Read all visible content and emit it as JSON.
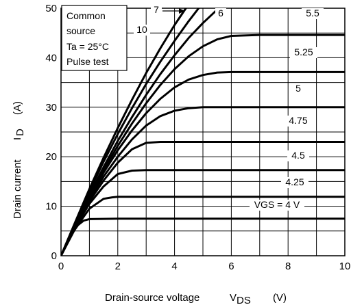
{
  "chart_data": {
    "type": "line",
    "xlabel": "Drain-source voltage",
    "xlabel_symbol": "V",
    "xlabel_subscript": "DS",
    "xlabel_unit": "(V)",
    "ylabel": "Drain current",
    "ylabel_symbol": "I",
    "ylabel_subscript": "D",
    "ylabel_unit": "(A)",
    "xlim": [
      0,
      10
    ],
    "ylim": [
      0,
      50
    ],
    "xticks": [
      0,
      2,
      4,
      6,
      8,
      10
    ],
    "yticks": [
      0,
      10,
      20,
      30,
      40,
      50
    ],
    "grid": true,
    "conditions": [
      "Common",
      "source",
      "Ta = 25°C",
      "Pulse test"
    ],
    "series": [
      {
        "name": "VGS = 4 V",
        "x": [
          0,
          0.2,
          0.4,
          0.6,
          0.8,
          1.0,
          2.0,
          4.0,
          6.0,
          8.0,
          10.0
        ],
        "y": [
          0,
          2.5,
          4.6,
          6.2,
          7.1,
          7.4,
          7.5,
          7.5,
          7.5,
          7.5,
          7.5
        ]
      },
      {
        "name": "4.25",
        "x": [
          0,
          0.5,
          1.0,
          1.5,
          1.8,
          2.0,
          4.0,
          6.0,
          8.0,
          10.0
        ],
        "y": [
          0,
          5.5,
          9.5,
          11.5,
          11.8,
          11.9,
          11.9,
          11.9,
          11.9,
          11.9
        ]
      },
      {
        "name": "4.5",
        "x": [
          0,
          0.5,
          1.0,
          1.5,
          2.0,
          2.5,
          3.0,
          4.0,
          6.0,
          8.0,
          10.0
        ],
        "y": [
          0,
          5.8,
          10.5,
          14.0,
          16.5,
          17.2,
          17.3,
          17.3,
          17.3,
          17.3,
          17.3
        ]
      },
      {
        "name": "4.75",
        "x": [
          0,
          0.5,
          1.0,
          1.5,
          2.0,
          2.5,
          3.0,
          3.5,
          4.0,
          6.0,
          8.0,
          10.0
        ],
        "y": [
          0,
          6.0,
          11.0,
          15.2,
          18.8,
          21.5,
          22.8,
          23.0,
          23.0,
          23.0,
          23.0,
          23.0
        ]
      },
      {
        "name": "5",
        "x": [
          0,
          0.5,
          1.0,
          1.5,
          2.0,
          2.5,
          3.0,
          3.5,
          4.0,
          4.5,
          5.0,
          6.0,
          8.0,
          10.0
        ],
        "y": [
          0,
          6.1,
          11.5,
          16.0,
          20.0,
          23.5,
          26.3,
          28.2,
          29.3,
          29.8,
          30.0,
          30.0,
          30.0,
          30.0
        ]
      },
      {
        "name": "5.25",
        "x": [
          0,
          0.5,
          1.0,
          1.5,
          2.0,
          2.5,
          3.0,
          3.5,
          4.0,
          4.5,
          5.0,
          5.5,
          6.0,
          7.0,
          8.0,
          10.0
        ],
        "y": [
          0,
          6.2,
          11.8,
          16.8,
          21.3,
          25.3,
          28.8,
          31.7,
          34.0,
          35.6,
          36.5,
          37.0,
          37.1,
          37.1,
          37.1,
          37.1
        ]
      },
      {
        "name": "5.5",
        "x": [
          0,
          0.5,
          1.0,
          1.5,
          2.0,
          2.5,
          3.0,
          3.5,
          4.0,
          4.5,
          5.0,
          5.5,
          6.0,
          7.0,
          8.0,
          10.0
        ],
        "y": [
          0,
          6.3,
          12.0,
          17.3,
          22.2,
          26.7,
          30.8,
          34.5,
          37.7,
          40.3,
          42.3,
          43.7,
          44.4,
          44.6,
          44.6,
          44.6
        ]
      },
      {
        "name": "6",
        "x": [
          0,
          0.5,
          1.0,
          1.5,
          2.0,
          2.5,
          3.0,
          3.5,
          4.0,
          4.5,
          5.0,
          5.5
        ],
        "y": [
          0,
          6.4,
          12.3,
          17.9,
          23.2,
          28.0,
          32.5,
          36.7,
          40.5,
          44.0,
          47.0,
          49.7
        ]
      },
      {
        "name": "10",
        "x": [
          0,
          0.5,
          1.0,
          1.5,
          2.0,
          2.5,
          3.0,
          3.5,
          4.0,
          4.5,
          4.85
        ],
        "y": [
          0,
          6.6,
          13.0,
          19.0,
          24.6,
          29.8,
          34.7,
          39.2,
          43.4,
          47.4,
          50.0
        ]
      },
      {
        "name": "7",
        "x": [
          0,
          0.5,
          1.0,
          1.5,
          2.0,
          2.5,
          3.0,
          3.5,
          4.0,
          4.4
        ],
        "y": [
          0,
          6.8,
          13.5,
          19.8,
          25.8,
          31.5,
          36.9,
          41.9,
          46.6,
          50.0
        ]
      }
    ]
  }
}
